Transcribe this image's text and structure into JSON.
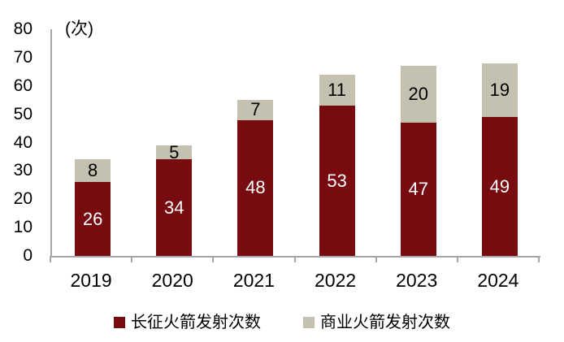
{
  "chart_data": {
    "type": "bar",
    "stacked": true,
    "title": "",
    "unit_label": "(次)",
    "categories": [
      "2019",
      "2020",
      "2021",
      "2022",
      "2023",
      "2024"
    ],
    "series": [
      {
        "name": "长征火箭发射次数",
        "color": "#770B10",
        "label_color": "#FFFFFF",
        "values": [
          26,
          34,
          48,
          53,
          47,
          49
        ]
      },
      {
        "name": "商业火箭发射次数",
        "color": "#C5C1B1",
        "label_color": "#000000",
        "values": [
          8,
          5,
          7,
          11,
          20,
          19
        ]
      }
    ],
    "totals": [
      34,
      39,
      55,
      64,
      67,
      68
    ],
    "ylim": [
      0,
      80
    ],
    "yticks": [
      0,
      10,
      20,
      30,
      40,
      50,
      60,
      70,
      80
    ],
    "grid": false,
    "legend_position": "bottom",
    "axis_color": "#A6A6A6",
    "background_color": "#FFFFFF"
  }
}
